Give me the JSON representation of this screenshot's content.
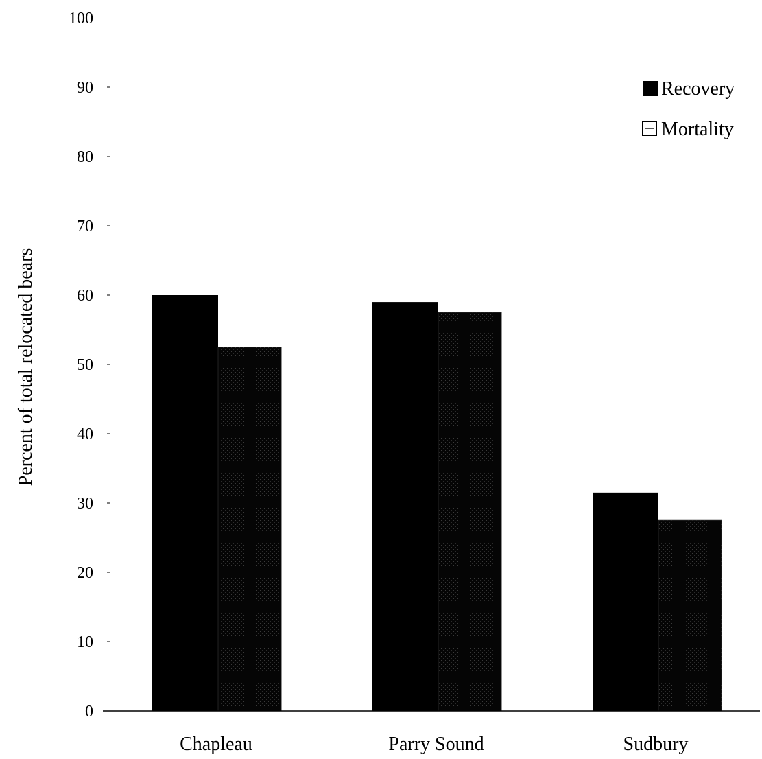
{
  "chart_data": {
    "type": "bar",
    "title": "",
    "xlabel": "",
    "ylabel": "Percent of total relocated bears",
    "ylim": [
      0,
      100
    ],
    "yticks": [
      0,
      10,
      20,
      30,
      40,
      50,
      60,
      70,
      80,
      90,
      100
    ],
    "categories": [
      "Chapleau",
      "Parry Sound",
      "Sudbury"
    ],
    "series": [
      {
        "name": "Recovery",
        "values": [
          60,
          59,
          31.5
        ],
        "color": "#000000",
        "pattern": "solid"
      },
      {
        "name": "Mortality",
        "values": [
          52.5,
          57.5,
          27.5
        ],
        "color": "#0a0a0a",
        "pattern": "stippled"
      }
    ],
    "grid": false,
    "legend_position": "top-right"
  }
}
